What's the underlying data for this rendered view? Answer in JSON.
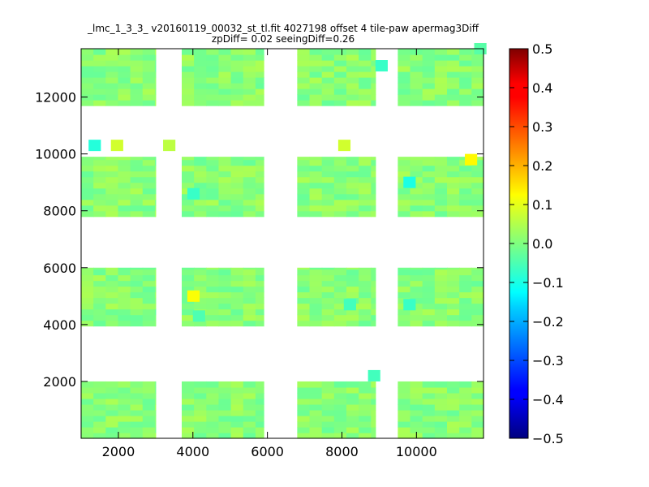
{
  "chart_data": {
    "type": "heatmap",
    "title": "_lmc_1_3_3_ v20160119_00032_st_tl.fit 4027198 offset 4 tile-paw apermag3Diff",
    "subtitle": "zpDiff= 0.02 seeingDiff=0.26",
    "xlim": [
      1000,
      11800
    ],
    "ylim": [
      0,
      13700
    ],
    "x_ticks": [
      2000,
      4000,
      6000,
      8000,
      10000
    ],
    "y_ticks": [
      2000,
      4000,
      6000,
      8000,
      10000,
      12000
    ],
    "colorbar": {
      "colormap": "jet",
      "range": [
        -0.5,
        0.5
      ],
      "ticks": [
        0.5,
        0.4,
        0.3,
        0.2,
        0.1,
        0.0,
        -0.1,
        -0.2,
        -0.3,
        -0.4,
        -0.5
      ],
      "tick_labels": [
        "0.5",
        "0.4",
        "0.3",
        "0.2",
        "0.1",
        "0.0",
        "−0.1",
        "−0.2",
        "−0.3",
        "−0.4",
        "−0.5"
      ]
    },
    "grid": false,
    "cell_size": [
      330,
      200
    ],
    "detectors": {
      "x_ranges": [
        [
          1000,
          3000
        ],
        [
          3700,
          5900
        ],
        [
          6800,
          8900
        ],
        [
          9500,
          11800
        ]
      ],
      "y_ranges": [
        [
          0,
          2000
        ],
        [
          3950,
          6000
        ],
        [
          7800,
          9900
        ],
        [
          11700,
          13700
        ]
      ],
      "base_value": 0.01,
      "variation": 0.035
    },
    "highlight_cells": [
      {
        "x": 1200,
        "y": 10100,
        "value": -0.09
      },
      {
        "x": 1800,
        "y": 10100,
        "value": 0.08
      },
      {
        "x": 3200,
        "y": 10100,
        "value": 0.06
      },
      {
        "x": 7900,
        "y": 10100,
        "value": 0.08
      },
      {
        "x": 11300,
        "y": 9600,
        "value": 0.13
      },
      {
        "x": 9650,
        "y": 8800,
        "value": -0.1
      },
      {
        "x": 3850,
        "y": 4800,
        "value": 0.12
      },
      {
        "x": 3850,
        "y": 8400,
        "value": -0.07
      },
      {
        "x": 8050,
        "y": 4500,
        "value": -0.06
      },
      {
        "x": 9650,
        "y": 4500,
        "value": -0.07
      },
      {
        "x": 8900,
        "y": 12900,
        "value": -0.07
      },
      {
        "x": 8700,
        "y": 2000,
        "value": -0.06
      },
      {
        "x": 4000,
        "y": 4100,
        "value": -0.05
      },
      {
        "x": 11550,
        "y": 13500,
        "value": -0.04
      }
    ]
  }
}
